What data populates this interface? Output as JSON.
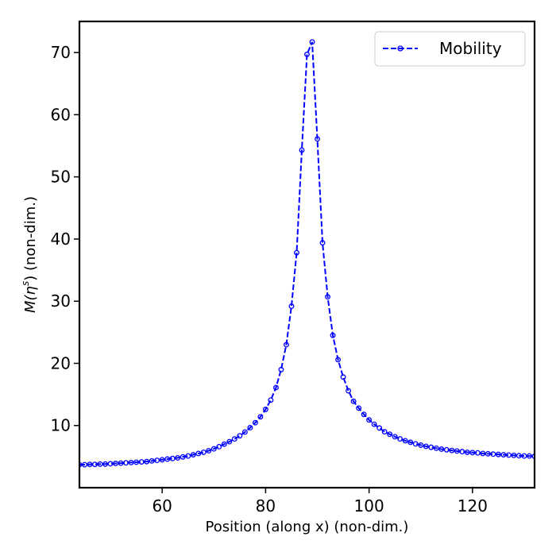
{
  "chart_data": {
    "type": "line",
    "xlabel": "Position (along x) (non-dim.)",
    "ylabel_parts": {
      "prefix": "M(η",
      "superscript": "s",
      "suffix": ") (non-dim.)"
    },
    "xlim": [
      44,
      132
    ],
    "ylim": [
      0,
      75
    ],
    "x_ticks": [
      60,
      80,
      100,
      120
    ],
    "y_ticks": [
      10,
      20,
      30,
      40,
      50,
      60,
      70
    ],
    "grid": false,
    "legend_position": "top-right",
    "series": [
      {
        "name": "Mobility",
        "color": "#0000ff",
        "line_style": "dashed",
        "marker": "circle-open",
        "x": [
          44,
          45,
          46,
          47,
          48,
          49,
          50,
          51,
          52,
          53,
          54,
          55,
          56,
          57,
          58,
          59,
          60,
          61,
          62,
          63,
          64,
          65,
          66,
          67,
          68,
          69,
          70,
          71,
          72,
          73,
          74,
          75,
          76,
          77,
          78,
          79,
          80,
          81,
          82,
          83,
          84,
          85,
          86,
          87,
          88,
          89,
          90,
          91,
          92,
          93,
          94,
          95,
          96,
          97,
          98,
          99,
          100,
          101,
          102,
          103,
          104,
          105,
          106,
          107,
          108,
          109,
          110,
          111,
          112,
          113,
          114,
          115,
          116,
          117,
          118,
          119,
          120,
          121,
          122,
          123,
          124,
          125,
          126,
          127,
          128,
          129,
          130,
          131,
          132
        ],
        "y": [
          3.7,
          3.7,
          3.75,
          3.75,
          3.8,
          3.8,
          3.85,
          3.9,
          3.95,
          4.0,
          4.05,
          4.1,
          4.15,
          4.2,
          4.3,
          4.4,
          4.5,
          4.6,
          4.7,
          4.8,
          4.95,
          5.1,
          5.3,
          5.5,
          5.7,
          5.95,
          6.25,
          6.6,
          7.0,
          7.4,
          7.85,
          8.35,
          8.95,
          9.65,
          10.45,
          11.4,
          12.6,
          14.1,
          16.1,
          19.0,
          23.0,
          29.2,
          37.8,
          54.3,
          69.7,
          71.7,
          56.1,
          39.4,
          30.7,
          24.5,
          20.6,
          17.8,
          15.6,
          13.9,
          12.8,
          11.8,
          10.9,
          10.2,
          9.6,
          9.0,
          8.6,
          8.2,
          7.85,
          7.55,
          7.3,
          7.05,
          6.85,
          6.65,
          6.5,
          6.35,
          6.2,
          6.1,
          6.0,
          5.9,
          5.8,
          5.7,
          5.65,
          5.6,
          5.5,
          5.45,
          5.4,
          5.35,
          5.3,
          5.25,
          5.2,
          5.15,
          5.1,
          5.1,
          5.05
        ]
      }
    ]
  }
}
